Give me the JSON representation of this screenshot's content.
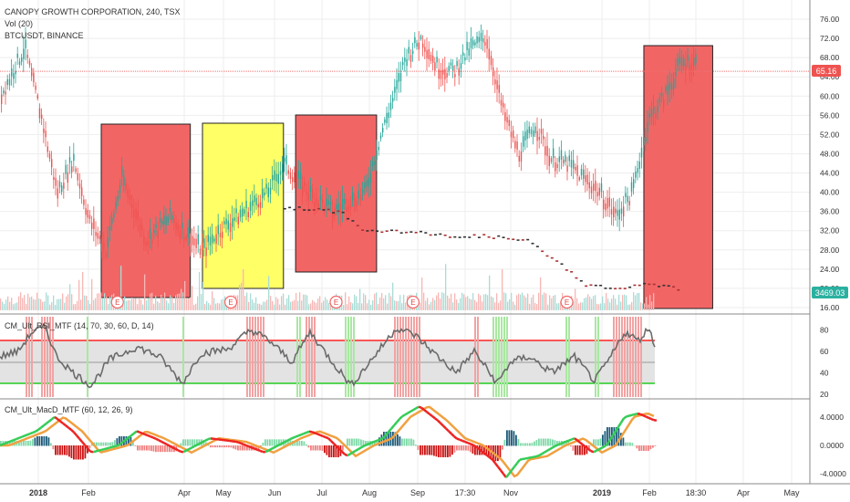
{
  "header": {
    "symbol_title": "CANOPY GROWTH CORPORATION, 240, TSX",
    "volume_label": "Vol (20)",
    "overlay_label": "BTCUSDT, BINANCE"
  },
  "indicators": {
    "rsi_label": "CM_Ult_RSI_MTF (14, 70, 30, 60, D, 14)",
    "macd_label": "CM_Ult_MacD_MTF (60, 12, 26, 9)"
  },
  "price_badges": {
    "last_price": "65.16",
    "overlay_value": "3469.03"
  },
  "earnings_marker_label": "E",
  "colors": {
    "candle_up": "#26a69a",
    "candle_down": "#ef5350",
    "box_red": "#f26565",
    "box_yellow": "#ffff66",
    "rsi_line": "#6b6b6b",
    "macd_up": "#33cc55",
    "macd_down": "#ee2222",
    "macd_signal": "#f0a040",
    "last_price_line": "#f07070"
  },
  "chart_data": [
    {
      "type": "candlestick",
      "title": "CANOPY GROWTH CORPORATION, 240, TSX",
      "x_tick_labels": [
        "2018",
        "Feb",
        "Apr",
        "May",
        "Jun",
        "Jul",
        "Aug",
        "Sep",
        "17:30",
        "Nov",
        "2019",
        "Feb",
        "18:30",
        "Apr",
        "May"
      ],
      "y_tick_labels": [
        "76.00",
        "72.00",
        "68.00",
        "64.00",
        "60.00",
        "56.00",
        "52.00",
        "48.00",
        "44.00",
        "40.00",
        "36.00",
        "32.00",
        "28.00",
        "24.00",
        "20.00",
        "16.00"
      ],
      "ylim": [
        16,
        76
      ],
      "last_price": 65.16,
      "series": [
        {
          "name": "CANOPY GROWTH CORPORATION",
          "approx_path": [
            [
              0,
              60
            ],
            [
              0.03,
              70
            ],
            [
              0.05,
              56
            ],
            [
              0.07,
              40
            ],
            [
              0.09,
              47
            ],
            [
              0.11,
              34
            ],
            [
              0.13,
              28
            ],
            [
              0.15,
              43
            ],
            [
              0.18,
              30
            ],
            [
              0.21,
              35
            ],
            [
              0.23,
              31
            ],
            [
              0.25,
              28
            ],
            [
              0.27,
              32
            ],
            [
              0.3,
              36
            ],
            [
              0.33,
              40
            ],
            [
              0.35,
              46
            ],
            [
              0.38,
              40
            ],
            [
              0.41,
              36
            ],
            [
              0.43,
              38
            ],
            [
              0.45,
              40
            ],
            [
              0.47,
              52
            ],
            [
              0.49,
              62
            ],
            [
              0.5,
              68
            ],
            [
              0.52,
              72
            ],
            [
              0.54,
              66
            ],
            [
              0.56,
              65
            ],
            [
              0.58,
              70
            ],
            [
              0.6,
              72
            ],
            [
              0.62,
              57
            ],
            [
              0.64,
              48
            ],
            [
              0.66,
              54
            ],
            [
              0.68,
              47
            ],
            [
              0.7,
              46
            ],
            [
              0.72,
              43
            ],
            [
              0.74,
              40
            ],
            [
              0.76,
              35
            ],
            [
              0.78,
              40
            ],
            [
              0.8,
              55
            ],
            [
              0.82,
              60
            ],
            [
              0.84,
              67
            ],
            [
              0.86,
              67
            ]
          ]
        },
        {
          "name": "BTCUSDT, BINANCE",
          "overlay_value": 3469.03,
          "approx_path": [
            [
              0.35,
              37
            ],
            [
              0.42,
              36
            ],
            [
              0.45,
              32
            ],
            [
              0.5,
              32
            ],
            [
              0.55,
              31
            ],
            [
              0.6,
              31
            ],
            [
              0.65,
              30
            ],
            [
              0.7,
              24
            ],
            [
              0.72,
              21
            ],
            [
              0.76,
              20
            ],
            [
              0.8,
              21
            ],
            [
              0.84,
              20
            ]
          ]
        }
      ],
      "highlight_boxes": [
        {
          "color": "red",
          "x_range": [
            0.125,
            0.235
          ]
        },
        {
          "color": "yellow",
          "x_range": [
            0.25,
            0.35
          ]
        },
        {
          "color": "red",
          "x_range": [
            0.365,
            0.465
          ]
        },
        {
          "color": "red",
          "x_range": [
            0.795,
            0.88
          ]
        }
      ],
      "earnings_markers_x": [
        0.145,
        0.285,
        0.415,
        0.51,
        0.7
      ]
    },
    {
      "type": "line",
      "title": "CM_Ult_RSI_MTF (14, 70, 30, 60, D, 14)",
      "y_tick_labels": [
        "80",
        "60",
        "40",
        "20"
      ],
      "ylim": [
        20,
        90
      ],
      "upper_band": 70,
      "lower_band": 30,
      "mid_line": 50
    },
    {
      "type": "histogram",
      "title": "CM_Ult_MacD_MTF (60, 12, 26, 9)",
      "y_tick_labels": [
        "4.0000",
        "0.0000",
        "-4.0000"
      ],
      "ylim": [
        -5,
        5
      ]
    }
  ]
}
